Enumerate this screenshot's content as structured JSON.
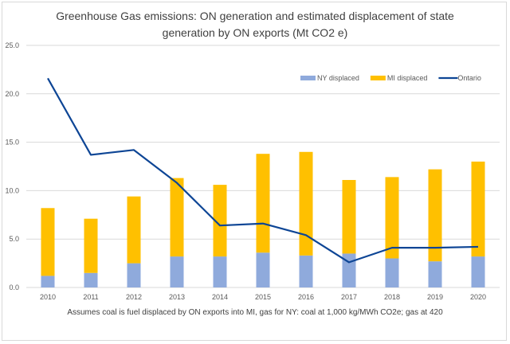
{
  "chart_data": {
    "type": "bar",
    "title_line1": "Greenhouse  Gas emissions: ON generation and estimated displacement of state",
    "title_line2": "generation by ON exports (Mt CO2 e)",
    "categories": [
      "2010",
      "2011",
      "2012",
      "2013",
      "2014",
      "2015",
      "2016",
      "2017",
      "2018",
      "2019",
      "2020"
    ],
    "series": [
      {
        "name": "NY displaced",
        "kind": "stacked-bar",
        "color": "#8faadc",
        "values": [
          1.2,
          1.5,
          2.5,
          3.2,
          3.2,
          3.6,
          3.3,
          3.5,
          3.0,
          2.7,
          3.2
        ]
      },
      {
        "name": "MI displaced",
        "kind": "stacked-bar",
        "color": "#ffc000",
        "values": [
          7.0,
          5.6,
          6.9,
          8.1,
          7.4,
          10.2,
          10.7,
          7.6,
          8.4,
          9.5,
          9.8
        ]
      },
      {
        "name": "Ontario",
        "kind": "line",
        "color": "#0d4595",
        "values": [
          21.6,
          13.7,
          14.2,
          10.8,
          6.4,
          6.6,
          5.4,
          2.6,
          4.1,
          4.1,
          4.2
        ]
      }
    ],
    "ylim": [
      0,
      25
    ],
    "yticks": [
      "0.0",
      "5.0",
      "10.0",
      "15.0",
      "20.0",
      "25.0"
    ],
    "ytick_values": [
      0,
      5,
      10,
      15,
      20,
      25
    ],
    "grid": true,
    "legend_position": "top-right",
    "footnote": "Assumes coal is fuel displaced by ON exports into MI, gas for NY: coal at 1,000 kg/MWh CO2e; gas at 420"
  }
}
